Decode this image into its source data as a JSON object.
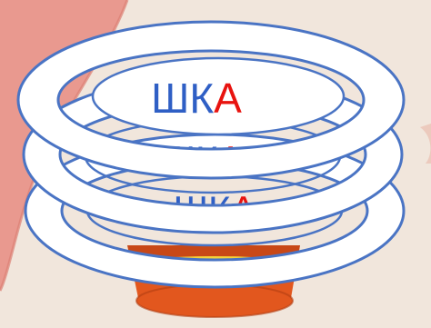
{
  "colors": {
    "background": "#f1e6dc",
    "pink_shape": "#e9998f",
    "pink_shape_dark": "#dc7d72",
    "ring_fill": "#ffffff",
    "ring_stroke": "#4a74c4",
    "ring_inner_shadow": "#d7e3f4",
    "syllable_main_color": "#2f5fc5",
    "syllable_accent_color": "#e8130f",
    "pot_orange": "#e2571e",
    "pot_dark": "#b23d12",
    "pot_yellow": "#f4d23a"
  },
  "cards": [
    {
      "part_main": "ШК",
      "part_accent": "А"
    },
    {
      "part_main": "ШК",
      "part_accent": "А"
    },
    {
      "part_main": "ШК",
      "part_accent": "А"
    }
  ]
}
